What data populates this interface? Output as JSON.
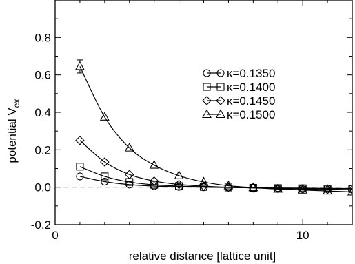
{
  "chart_data": {
    "type": "line",
    "xlabel": "relative distance [lattice unit]",
    "ylabel_main": "potential V",
    "ylabel_sub": "ex",
    "xlim": [
      0,
      12
    ],
    "ylim": [
      -0.2,
      1.0
    ],
    "x_ticks": [
      0,
      10
    ],
    "x_tick_labels": [
      "0",
      "10"
    ],
    "y_ticks": [
      -0.2,
      0.0,
      0.2,
      0.4,
      0.6,
      0.8
    ],
    "y_tick_labels": [
      "-0.2",
      "0.0",
      "0.2",
      "0.4",
      "0.6",
      "0.8"
    ],
    "reference_line": 0.0,
    "legend_position": "right",
    "series": [
      {
        "name": "κ=0.1350",
        "marker": "circle",
        "x": [
          1,
          2,
          3,
          4,
          5,
          6,
          7,
          8,
          9,
          10,
          11,
          12
        ],
        "y": [
          0.058,
          0.03,
          0.014,
          0.006,
          0.002,
          0.0,
          -0.002,
          -0.003,
          -0.004,
          -0.005,
          -0.006,
          -0.007
        ],
        "err": [
          0.006,
          0.004,
          0.003,
          0.003,
          0.002,
          0.002,
          0.002,
          0.002,
          0.003,
          0.003,
          0.003,
          0.004
        ]
      },
      {
        "name": "κ=0.1400",
        "marker": "square",
        "x": [
          1,
          2,
          3,
          4,
          5,
          6,
          7,
          8,
          9,
          10,
          11,
          12
        ],
        "y": [
          0.11,
          0.058,
          0.028,
          0.013,
          0.006,
          0.002,
          -0.001,
          -0.003,
          -0.005,
          -0.006,
          -0.008,
          -0.009
        ],
        "err": [
          0.01,
          0.006,
          0.004,
          0.003,
          0.003,
          0.003,
          0.003,
          0.003,
          0.004,
          0.004,
          0.005,
          0.005
        ]
      },
      {
        "name": "κ=0.1450",
        "marker": "diamond",
        "x": [
          1,
          2,
          3,
          4,
          5,
          6,
          7,
          8,
          9,
          10,
          11,
          12
        ],
        "y": [
          0.25,
          0.135,
          0.068,
          0.033,
          0.015,
          0.006,
          0.0,
          -0.004,
          -0.007,
          -0.01,
          -0.012,
          -0.014
        ],
        "err": [
          0.018,
          0.01,
          0.006,
          0.005,
          0.004,
          0.004,
          0.004,
          0.004,
          0.005,
          0.005,
          0.006,
          0.006
        ]
      },
      {
        "name": "κ=0.1500",
        "marker": "triangle",
        "x": [
          1,
          2,
          3,
          4,
          5,
          6,
          7,
          8,
          9,
          10,
          11,
          12
        ],
        "y": [
          0.645,
          0.375,
          0.21,
          0.118,
          0.062,
          0.028,
          0.008,
          -0.002,
          -0.01,
          -0.015,
          -0.02,
          -0.025
        ],
        "err": [
          0.035,
          0.018,
          0.01,
          0.007,
          0.006,
          0.005,
          0.005,
          0.005,
          0.006,
          0.007,
          0.008,
          0.009
        ]
      }
    ]
  }
}
